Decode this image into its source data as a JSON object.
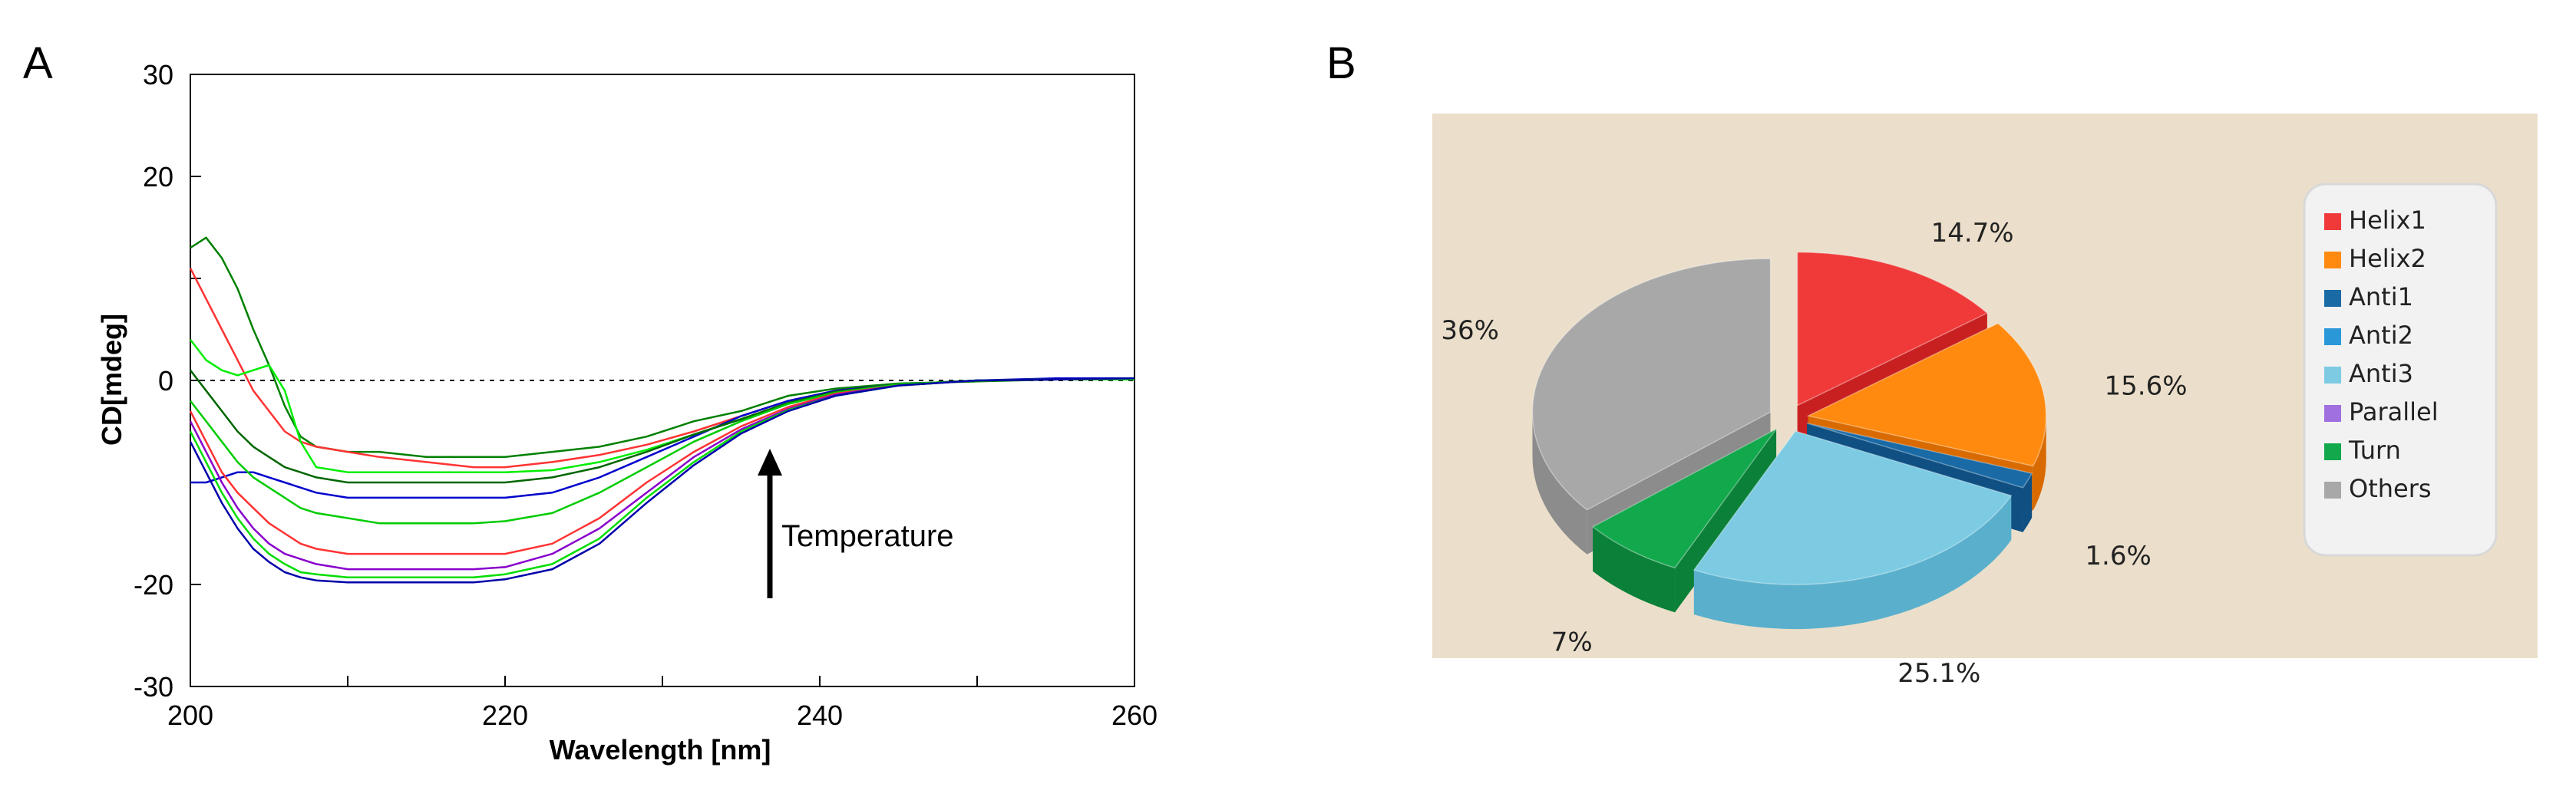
{
  "chart_data": [
    {
      "type": "line",
      "panel_label": "A",
      "xlabel": "Wavelength [nm]",
      "ylabel": "CD[mdeg]",
      "xlim": [
        200,
        260
      ],
      "ylim": [
        -30,
        30
      ],
      "xticks": [
        "200",
        "220",
        "240",
        "260"
      ],
      "yticks": [
        "30",
        "20",
        "0",
        "-20",
        "-30"
      ],
      "annotation": "Temperature",
      "zero_line": "dashed",
      "x": [
        200,
        201,
        202,
        203,
        204,
        205,
        206,
        207,
        208,
        210,
        212,
        215,
        218,
        220,
        223,
        226,
        229,
        232,
        235,
        238,
        241,
        245,
        250,
        255,
        260
      ],
      "series": [
        {
          "color": "#008000",
          "values": [
            13,
            14,
            12,
            9,
            5,
            1.5,
            -2.5,
            -5.5,
            -6.5,
            -7,
            -7,
            -7.5,
            -7.5,
            -7.5,
            -7,
            -6.5,
            -5.5,
            -4,
            -3,
            -1.5,
            -0.8,
            -0.3,
            -0.1,
            0.1,
            0.2
          ]
        },
        {
          "color": "#ff3333",
          "values": [
            11,
            8,
            5,
            2,
            -1,
            -3,
            -5,
            -6,
            -6.5,
            -7,
            -7.5,
            -8,
            -8.5,
            -8.5,
            -8,
            -7.3,
            -6.3,
            -5,
            -3.5,
            -2,
            -1,
            -0.4,
            0,
            0.1,
            0.1
          ]
        },
        {
          "color": "#0000cc",
          "values": [
            -10,
            -10,
            -9.5,
            -9,
            -9,
            -9.5,
            -10,
            -10.5,
            -11,
            -11.5,
            -11.5,
            -11.5,
            -11.5,
            -11.5,
            -11,
            -9.5,
            -7.5,
            -5.5,
            -3.5,
            -2,
            -1,
            -0.4,
            0,
            0.2,
            0.2
          ]
        },
        {
          "color": "#00ee00",
          "values": [
            4,
            2,
            1,
            0.5,
            1,
            1.5,
            -1,
            -6,
            -8.5,
            -9,
            -9,
            -9,
            -9,
            -9,
            -8.8,
            -8,
            -6.8,
            -5.3,
            -3.8,
            -2.2,
            -1.1,
            -0.4,
            0,
            0.1,
            0.1
          ]
        },
        {
          "color": "#006600",
          "values": [
            1,
            -1,
            -3,
            -5,
            -6.5,
            -7.5,
            -8.5,
            -9,
            -9.5,
            -10,
            -10,
            -10,
            -10,
            -10,
            -9.5,
            -8.5,
            -7,
            -5.3,
            -3.8,
            -2.2,
            -1.1,
            -0.4,
            0,
            0.1,
            0.1
          ]
        },
        {
          "color": "#00cc00",
          "values": [
            -2,
            -4,
            -6,
            -8,
            -9.5,
            -10.5,
            -11.5,
            -12.5,
            -13,
            -13.5,
            -14,
            -14,
            -14,
            -13.8,
            -13,
            -11,
            -8.5,
            -6,
            -4,
            -2.3,
            -1.2,
            -0.4,
            0,
            0.1,
            0.1
          ]
        },
        {
          "color": "#ff3333",
          "values": [
            -3,
            -6,
            -9,
            -11,
            -12.5,
            -14,
            -15,
            -16,
            -16.5,
            -17,
            -17,
            -17,
            -17,
            -17,
            -16,
            -13.5,
            -10,
            -7,
            -4.5,
            -2.6,
            -1.3,
            -0.5,
            0,
            0.1,
            0.1
          ]
        },
        {
          "color": "#8800cc",
          "values": [
            -4,
            -7,
            -10,
            -12.5,
            -14.5,
            -16,
            -17,
            -17.5,
            -18,
            -18.5,
            -18.5,
            -18.5,
            -18.5,
            -18.3,
            -17,
            -14.5,
            -11,
            -7.5,
            -4.8,
            -2.8,
            -1.4,
            -0.5,
            0,
            0.1,
            0.1
          ]
        },
        {
          "color": "#00dd00",
          "values": [
            -5,
            -8,
            -11,
            -13.5,
            -15.5,
            -17,
            -18,
            -18.8,
            -19,
            -19.3,
            -19.3,
            -19.3,
            -19.3,
            -19,
            -18,
            -15.5,
            -11.5,
            -8,
            -5,
            -2.9,
            -1.5,
            -0.5,
            0,
            0.1,
            0.1
          ]
        },
        {
          "color": "#0000aa",
          "values": [
            -6,
            -9,
            -12,
            -14.5,
            -16.5,
            -17.8,
            -18.8,
            -19.3,
            -19.6,
            -19.8,
            -19.8,
            -19.8,
            -19.8,
            -19.5,
            -18.5,
            -16,
            -12,
            -8.3,
            -5.2,
            -3,
            -1.5,
            -0.5,
            0,
            0.1,
            0.2
          ]
        }
      ]
    },
    {
      "type": "pie",
      "panel_label": "B",
      "categories": [
        "Helix1",
        "Helix2",
        "Anti1",
        "Anti2",
        "Anti3",
        "Parallel",
        "Turn",
        "Others"
      ],
      "values": [
        14.7,
        15.6,
        1.6,
        0,
        25.1,
        0,
        7,
        36
      ],
      "value_labels": [
        "14.7%",
        "15.6%",
        "1.6%",
        "",
        "25.1%",
        "",
        "7%",
        "36%"
      ],
      "colors": [
        "#f03a3a",
        "#ff8a0f",
        "#1a6aa6",
        "#2a98d8",
        "#7ccbe3",
        "#a070e0",
        "#12a84c",
        "#a8a8a8"
      ],
      "side_colors": [
        "#c82020",
        "#d96a00",
        "#0f4f82",
        "#1a78b0",
        "#5ab0cc",
        "#8050c0",
        "#0a8038",
        "#8c8c8c"
      ],
      "background": "#ebdfcb",
      "legend_position": "right",
      "exploded": true,
      "three_d": true
    }
  ]
}
